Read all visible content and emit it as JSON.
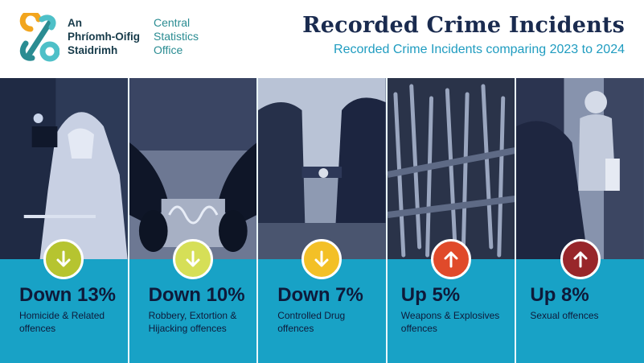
{
  "org": {
    "irish_lines": [
      "An",
      "Phríomh-Oifig",
      "Staidrimh"
    ],
    "english_lines": [
      "Central",
      "Statistics",
      "Office"
    ]
  },
  "header": {
    "title": "Recorded Crime Incidents",
    "subtitle": "Recorded Crime Incidents comparing 2023 to 2024"
  },
  "colors": {
    "panel_bg": "#18a2c6",
    "title": "#1a2b4f",
    "subtitle": "#1f9cc0",
    "down_green": "#b6c430",
    "down_lime": "#d6df57",
    "down_yellow": "#f3c027",
    "up_red": "#e04a2a",
    "up_maroon": "#98262a"
  },
  "panels": [
    {
      "stat": "Down 13%",
      "label": "Homicide & Related offences",
      "direction": "down",
      "icon": "arrow-down-icon",
      "badge_color": "#b6c430"
    },
    {
      "stat": "Down 10%",
      "label": "Robbery, Extortion & Hijacking offences",
      "direction": "down",
      "icon": "arrow-down-icon",
      "badge_color": "#d6df57"
    },
    {
      "stat": "Down 7%",
      "label": "Controlled Drug offences",
      "direction": "down",
      "icon": "arrow-down-icon",
      "badge_color": "#f3c027"
    },
    {
      "stat": "Up 5%",
      "label": "Weapons & Explosives offences",
      "direction": "up",
      "icon": "arrow-up-icon",
      "badge_color": "#e04a2a"
    },
    {
      "stat": "Up 8%",
      "label": "Sexual offences",
      "direction": "up",
      "icon": "arrow-up-icon",
      "badge_color": "#98262a"
    }
  ]
}
